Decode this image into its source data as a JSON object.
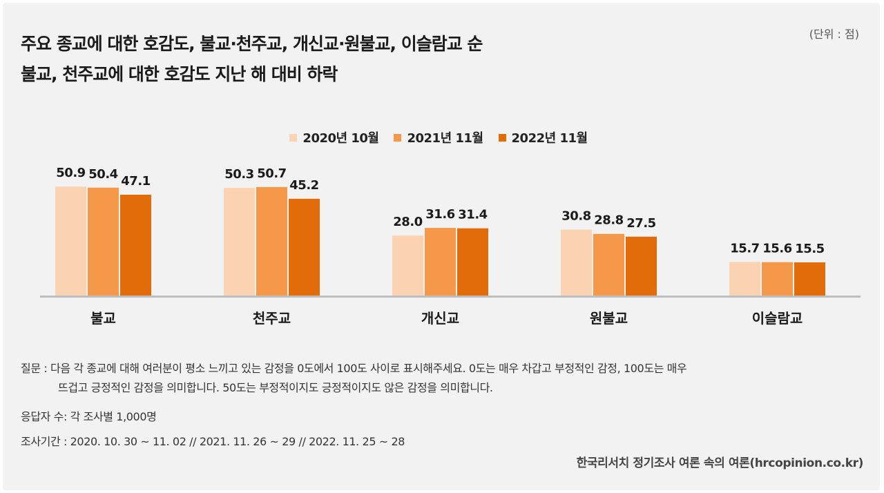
{
  "header": {
    "title_line1": "주요 종교에 대한 호감도, 불교·천주교, 개신교·원불교, 이슬람교 순",
    "title_line2": "불교, 천주교에 대한 호감도 지난 해 대비 하락",
    "unit": "(단위 : 점)"
  },
  "chart_data": {
    "type": "bar",
    "title": "주요 종교에 대한 호감도, 불교·천주교, 개신교·원불교, 이슬람교 순",
    "subtitle": "불교, 천주교에 대한 호감도 지난 해 대비 하락",
    "unit": "(단위 : 점)",
    "categories": [
      "불교",
      "천주교",
      "개신교",
      "원불교",
      "이슬람교"
    ],
    "series": [
      {
        "name": "2020년 10월",
        "color": "#fcd3b2",
        "values": [
          50.9,
          50.3,
          28.0,
          30.8,
          15.7
        ]
      },
      {
        "name": "2021년 11월",
        "color": "#f6984a",
        "values": [
          50.4,
          50.7,
          31.6,
          28.8,
          15.6
        ]
      },
      {
        "name": "2022년 11월",
        "color": "#e36c0a",
        "values": [
          47.1,
          45.2,
          31.4,
          27.5,
          15.5
        ]
      }
    ],
    "ylim": [
      0,
      100
    ],
    "grid": false,
    "legend_position": "top-center",
    "data_labels": true
  },
  "notes": {
    "question_line1": "질문 : 다음 각 종교에 대해 여러분이 평소 느끼고 있는 감정을 0도에서 100도 사이로 표시해주세요. 0도는 매우 차갑고 부정적인 감정, 100도는 매우",
    "question_line2": "뜨겁고 긍정적인 감정을 의미합니다. 50도는 부정적이지도 긍정적이지도 않은 감정을 의미합니다.",
    "respondents": "응답자 수: 각 조사별 1,000명",
    "period": "조사기간 : 2020. 10. 30 ~ 11. 02 // 2021. 11. 26 ~ 29 // 2022. 11. 25 ~ 28",
    "source": "한국리서치 정기조사 여론 속의 여론(hrcopinion.co.kr)"
  }
}
